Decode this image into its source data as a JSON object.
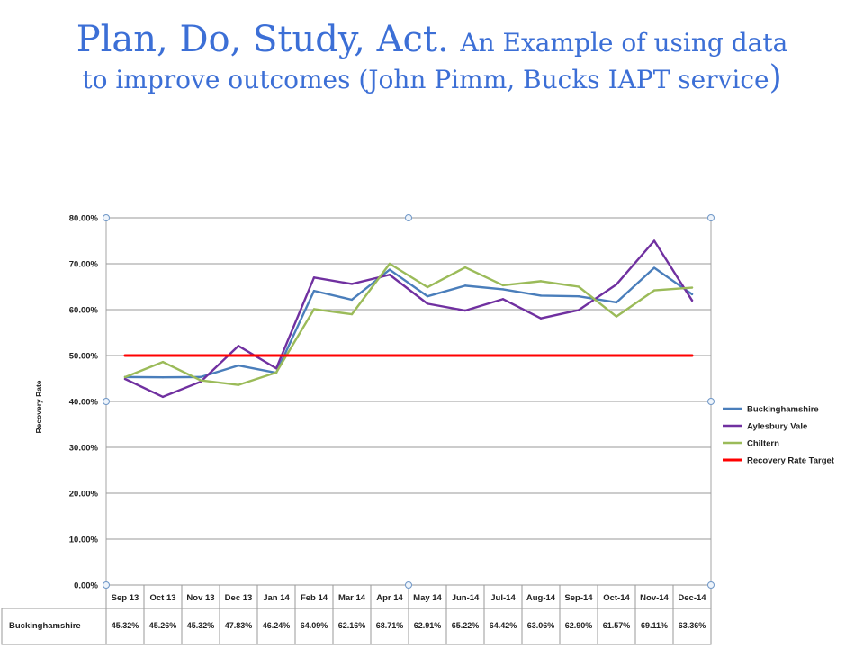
{
  "slide": {
    "title_main": "Plan, Do, Study, Act.",
    "title_sub_1": "An Example of using data",
    "title_sub_2": "to improve outcomes (John Pimm, Bucks IAPT service",
    "title_close": ")"
  },
  "chart_data": {
    "type": "line",
    "title": "",
    "xlabel": "",
    "ylabel": "Recovery Rate",
    "ylim": [
      0,
      80
    ],
    "ytick_step": 10,
    "grid": true,
    "legend_position": "right",
    "categories": [
      "Sep 13",
      "Oct 13",
      "Nov 13",
      "Dec 13",
      "Jan 14",
      "Feb 14",
      "Mar 14",
      "Apr 14",
      "May 14",
      "Jun-14",
      "Jul-14",
      "Aug-14",
      "Sep-14",
      "Oct-14",
      "Nov-14",
      "Dec-14"
    ],
    "series": [
      {
        "name": "Buckinghamshire",
        "color": "#4a7ebb",
        "values": [
          45.32,
          45.26,
          45.32,
          47.83,
          46.24,
          64.09,
          62.16,
          68.71,
          62.91,
          65.22,
          64.42,
          63.06,
          62.9,
          61.57,
          69.11,
          63.36
        ]
      },
      {
        "name": "Aylesbury Vale",
        "color": "#7030a0",
        "values": [
          44.9,
          41.0,
          44.3,
          52.1,
          47.2,
          67.0,
          65.6,
          67.6,
          61.3,
          59.8,
          62.3,
          58.1,
          59.9,
          65.5,
          75.0,
          62.0
        ]
      },
      {
        "name": "Chiltern",
        "color": "#9bbb59",
        "values": [
          45.3,
          48.6,
          44.6,
          43.6,
          46.3,
          60.1,
          59.0,
          70.0,
          64.9,
          69.2,
          65.3,
          66.2,
          65.0,
          58.5,
          64.2,
          64.8
        ]
      },
      {
        "name": "Recovery Rate Target",
        "color": "#ff0000",
        "values": [
          50,
          50,
          50,
          50,
          50,
          50,
          50,
          50,
          50,
          50,
          50,
          50,
          50,
          50,
          50,
          50
        ]
      }
    ],
    "table": {
      "row_label": "Buckinghamshire",
      "values": [
        "45.32%",
        "45.26%",
        "45.32%",
        "47.83%",
        "46.24%",
        "64.09%",
        "62.16%",
        "68.71%",
        "62.91%",
        "65.22%",
        "64.42%",
        "63.06%",
        "62.90%",
        "61.57%",
        "69.11%",
        "63.36%"
      ]
    }
  }
}
